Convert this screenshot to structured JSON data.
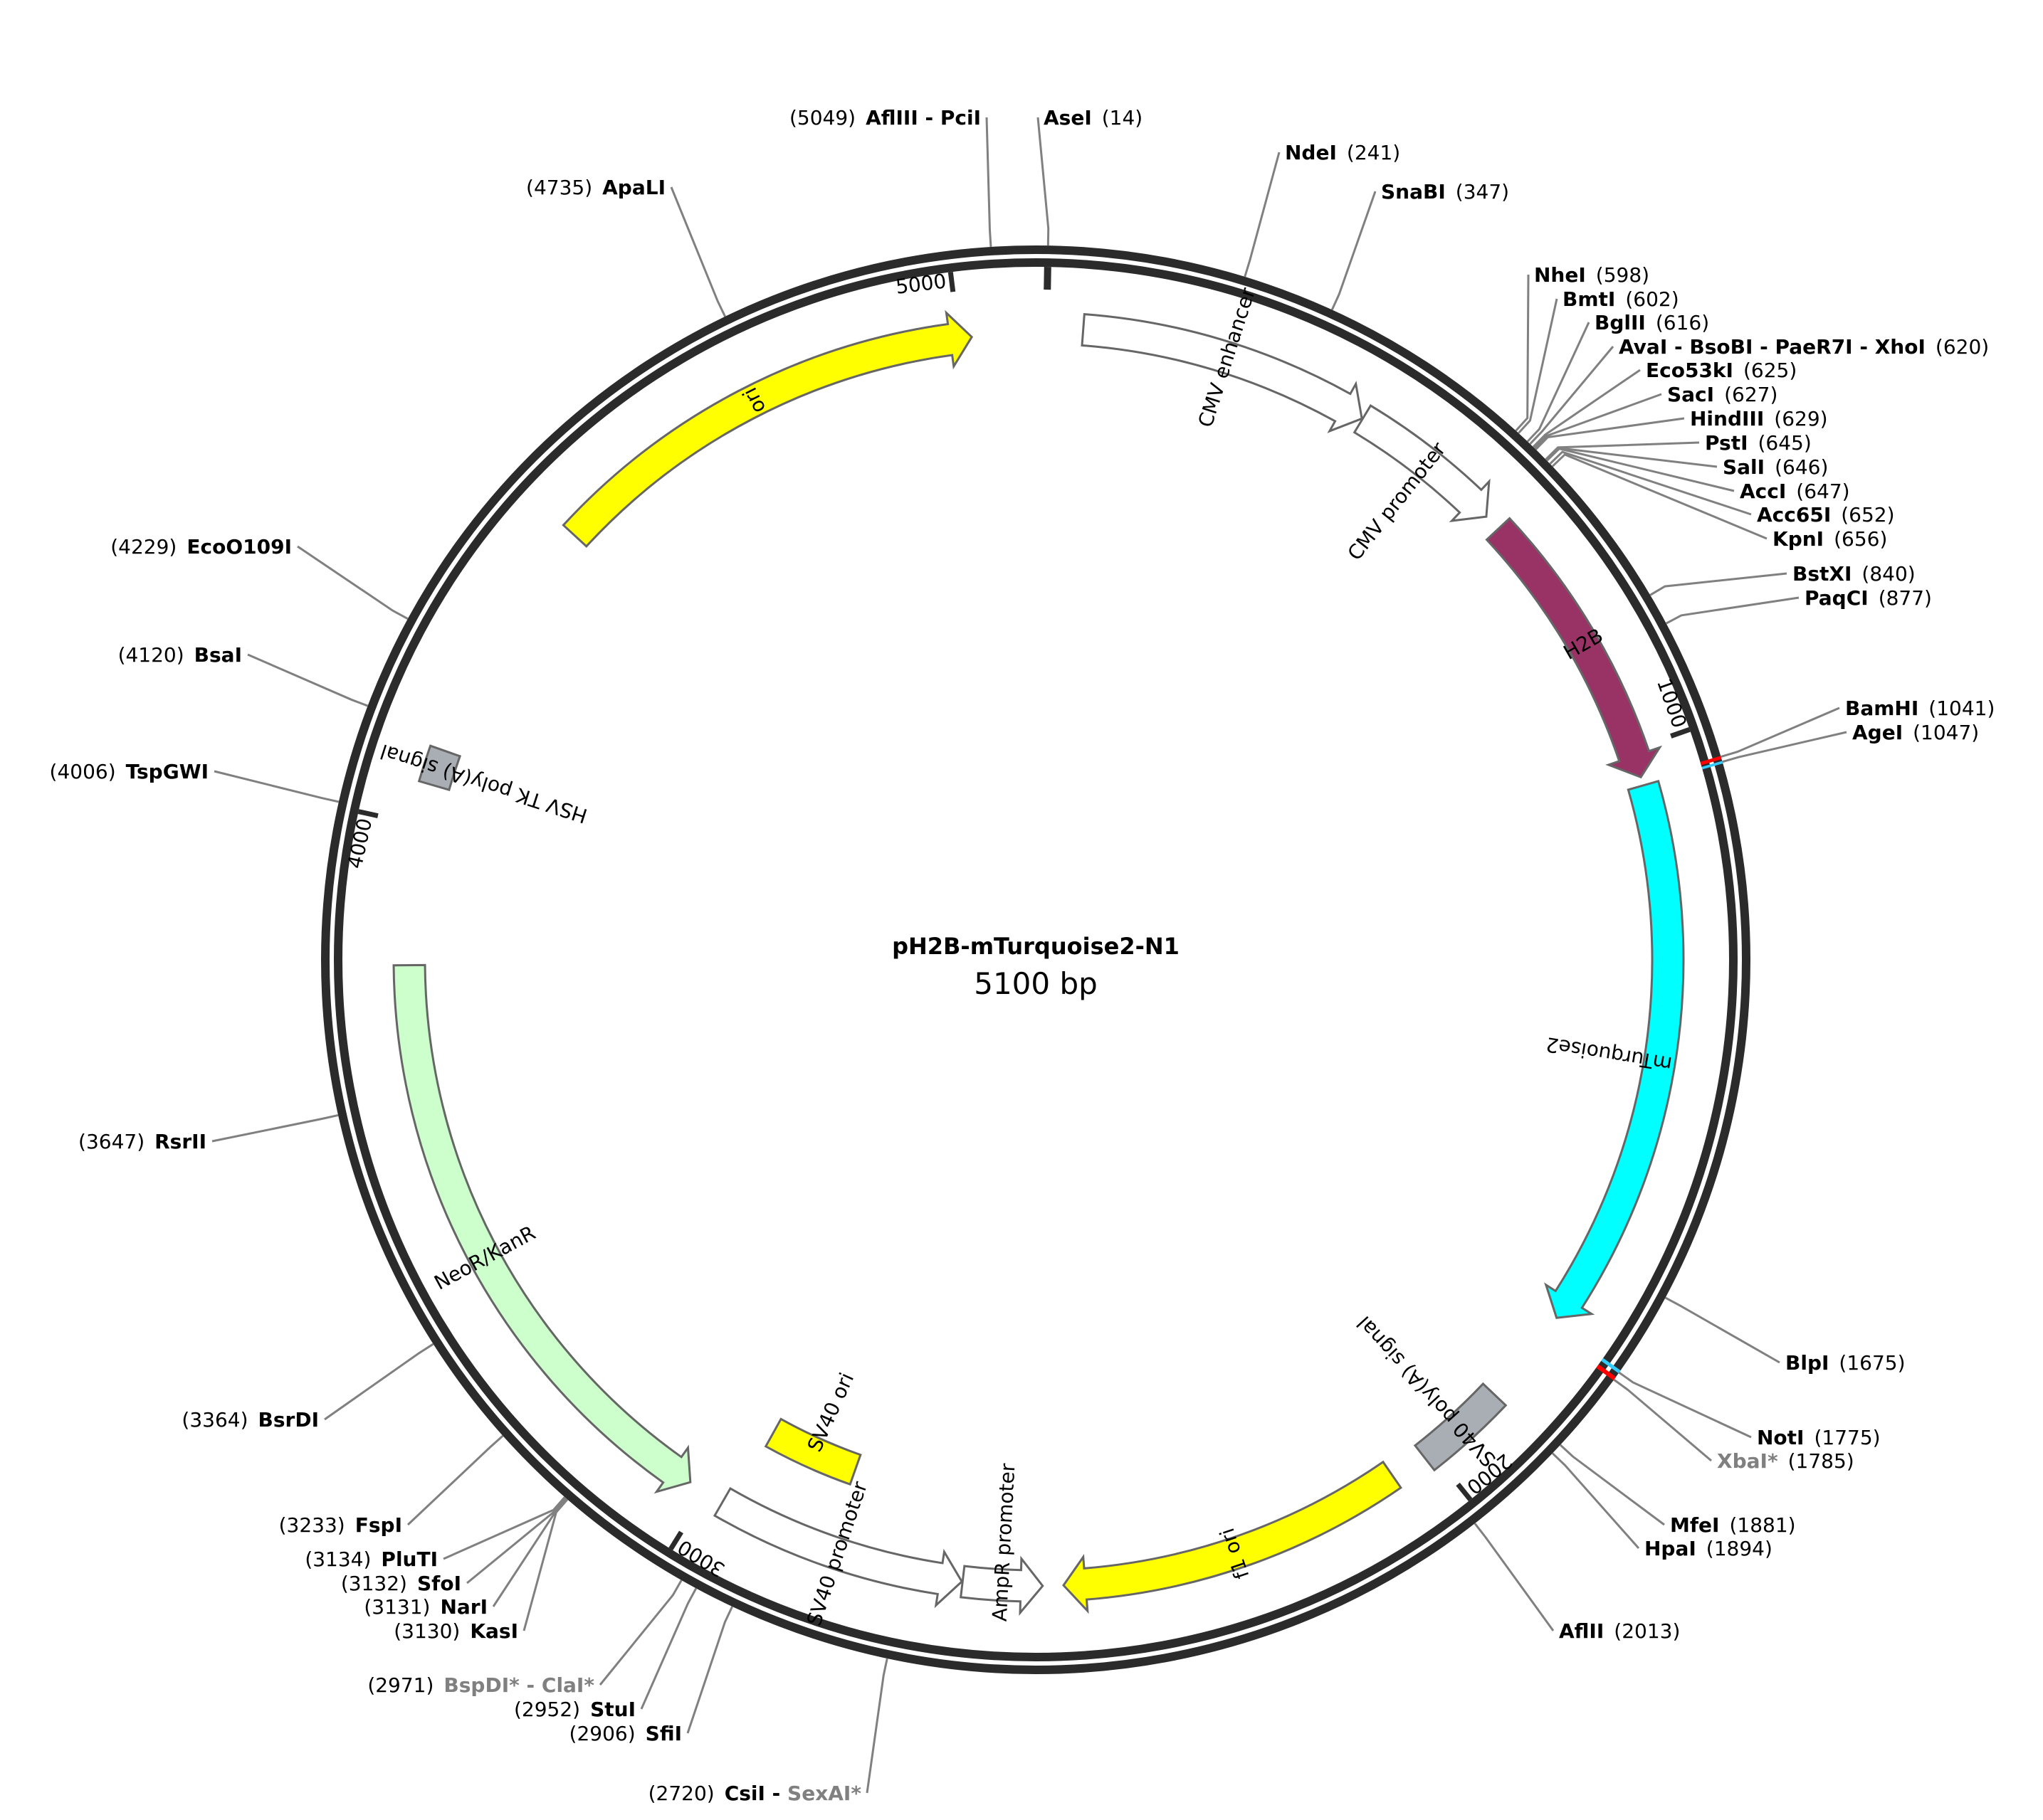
{
  "plasmid": {
    "name": "pH2B-mTurquoise2-N1",
    "length_label": "5100 bp",
    "length": 5100
  },
  "ticks": [
    {
      "pos": 1000,
      "label": "1000"
    },
    {
      "pos": 2000,
      "label": "2000"
    },
    {
      "pos": 3000,
      "label": "3000"
    },
    {
      "pos": 4000,
      "label": "4000"
    },
    {
      "pos": 5000,
      "label": "5000"
    }
  ],
  "features": [
    {
      "name": "CMV enhancer",
      "start": 61,
      "end": 440,
      "fill": "#ffffff",
      "dir": 1
    },
    {
      "name": "CMV promoter",
      "start": 441,
      "end": 644,
      "fill": "#ffffff",
      "dir": 1
    },
    {
      "name": "H2B",
      "start": 666,
      "end": 1037,
      "fill": "#993366",
      "dir": 1,
      "text_color": "#ffffff"
    },
    {
      "name": "mTurquoise2",
      "start": 1048,
      "end": 1764,
      "fill": "#00ffff",
      "dir": 1
    },
    {
      "name": "SV40 poly(A) signal",
      "start": 1891,
      "end": 2012,
      "fill": "#a9adb4",
      "dir": 0
    },
    {
      "name": "f1 ori",
      "start": 2059,
      "end": 2514,
      "fill": "#ffff00",
      "dir": 1
    },
    {
      "name": "AmpR promoter",
      "start": 2541,
      "end": 2645,
      "fill": "#ffffff",
      "dir": -1
    },
    {
      "name": "SV40 promoter",
      "start": 2646,
      "end": 2975,
      "fill": "#ffffff",
      "dir": -1
    },
    {
      "name": "SV40 ori",
      "start": 2826,
      "end": 2961,
      "fill": "#ffff00",
      "dir": 0
    },
    {
      "name": "NeoR/KanR",
      "start": 3024,
      "end": 3818,
      "fill": "#ccffcc",
      "dir": -1
    },
    {
      "name": "HSV TK poly(A) signal",
      "start": 4054,
      "end": 4101,
      "fill": "#a9adb4",
      "dir": 0
    },
    {
      "name": "ori",
      "start": 4429,
      "end": 5017,
      "fill": "#ffff00",
      "dir": 1
    }
  ],
  "sites": [
    {
      "pos": "(5049)",
      "name": "AflIII - PciI",
      "bp": 5049
    },
    {
      "pos": "(14)",
      "name": "AseI",
      "bp": 14
    },
    {
      "pos": "(241)",
      "name": "NdeI",
      "bp": 241
    },
    {
      "pos": "(347)",
      "name": "SnaBI",
      "bp": 347
    },
    {
      "pos": "(598)",
      "name": "NheI",
      "bp": 598
    },
    {
      "pos": "(602)",
      "name": "BmtI",
      "bp": 602
    },
    {
      "pos": "(616)",
      "name": "BglII",
      "bp": 616
    },
    {
      "pos": "(620)",
      "name": "AvaI - BsoBI - PaeR7I - XhoI",
      "bp": 620
    },
    {
      "pos": "(625)",
      "name": "Eco53kI",
      "bp": 625
    },
    {
      "pos": "(627)",
      "name": "SacI",
      "bp": 627
    },
    {
      "pos": "(629)",
      "name": "HindIII",
      "bp": 629
    },
    {
      "pos": "(645)",
      "name": "PstI",
      "bp": 645
    },
    {
      "pos": "(646)",
      "name": "SalI",
      "bp": 646
    },
    {
      "pos": "(647)",
      "name": "AccI",
      "bp": 647
    },
    {
      "pos": "(652)",
      "name": "Acc65I",
      "bp": 652
    },
    {
      "pos": "(656)",
      "name": "KpnI",
      "bp": 656
    },
    {
      "pos": "(840)",
      "name": "BstXI",
      "bp": 840
    },
    {
      "pos": "(877)",
      "name": "PaqCI",
      "bp": 877
    },
    {
      "pos": "(1041)",
      "name": "BamHI",
      "bp": 1041
    },
    {
      "pos": "(1047)",
      "name": "AgeI",
      "bp": 1047
    },
    {
      "pos": "(1675)",
      "name": "BlpI",
      "bp": 1675
    },
    {
      "pos": "(1775)",
      "name": "NotI",
      "bp": 1775
    },
    {
      "pos": "(1785)",
      "name": "XbaI*",
      "bp": 1785,
      "gray": true
    },
    {
      "pos": "(1881)",
      "name": "MfeI",
      "bp": 1881
    },
    {
      "pos": "(1894)",
      "name": "HpaI",
      "bp": 1894
    },
    {
      "pos": "(2013)",
      "name": "AflII",
      "bp": 2013
    },
    {
      "pos": "(2720)",
      "name": "CsiI",
      "name2": "SexAI*",
      "bp": 2720
    },
    {
      "pos": "(2906)",
      "name": "SfiI",
      "bp": 2906
    },
    {
      "pos": "(2952)",
      "name": "StuI",
      "bp": 2952
    },
    {
      "pos": "(2971)",
      "name": "BspDI* - ClaI*",
      "bp": 2971,
      "gray": true
    },
    {
      "pos": "(3130)",
      "name": "KasI",
      "bp": 3130
    },
    {
      "pos": "(3131)",
      "name": "NarI",
      "bp": 3131
    },
    {
      "pos": "(3132)",
      "name": "SfoI",
      "bp": 3132
    },
    {
      "pos": "(3134)",
      "name": "PluTI",
      "bp": 3134
    },
    {
      "pos": "(3233)",
      "name": "FspI",
      "bp": 3233
    },
    {
      "pos": "(3364)",
      "name": "BsrDI",
      "bp": 3364
    },
    {
      "pos": "(3647)",
      "name": "RsrII",
      "bp": 3647
    },
    {
      "pos": "(4006)",
      "name": "TspGWI",
      "bp": 4006
    },
    {
      "pos": "(4120)",
      "name": "BsaI",
      "bp": 4120
    },
    {
      "pos": "(4229)",
      "name": "EcoO109I",
      "bp": 4229
    },
    {
      "pos": "(4735)",
      "name": "ApaLI",
      "bp": 4735
    }
  ],
  "colors": {
    "backbone": "#2b2b2b",
    "leader": "#808080",
    "marker_red": "#ff0000",
    "marker_blue": "#33ccff"
  }
}
